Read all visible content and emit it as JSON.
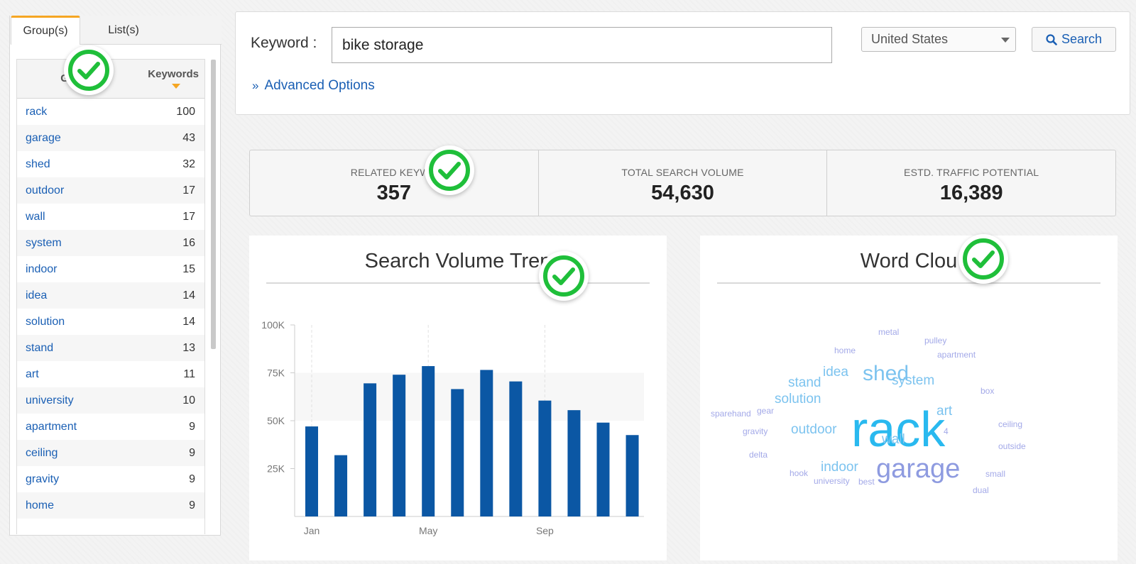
{
  "tabs": {
    "groups": "Group(s)",
    "lists": "List(s)"
  },
  "groups_table": {
    "col_group": "Gr",
    "col_keywords": "Keywords",
    "rows": [
      {
        "name": "rack",
        "count": "100"
      },
      {
        "name": "garage",
        "count": "43"
      },
      {
        "name": "shed",
        "count": "32"
      },
      {
        "name": "outdoor",
        "count": "17"
      },
      {
        "name": "wall",
        "count": "17"
      },
      {
        "name": "system",
        "count": "16"
      },
      {
        "name": "indoor",
        "count": "15"
      },
      {
        "name": "idea",
        "count": "14"
      },
      {
        "name": "solution",
        "count": "14"
      },
      {
        "name": "stand",
        "count": "13"
      },
      {
        "name": "art",
        "count": "11"
      },
      {
        "name": "university",
        "count": "10"
      },
      {
        "name": "apartment",
        "count": "9"
      },
      {
        "name": "ceiling",
        "count": "9"
      },
      {
        "name": "gravity",
        "count": "9"
      },
      {
        "name": "home",
        "count": "9"
      }
    ]
  },
  "search": {
    "label": "Keyword :",
    "value": "bike storage",
    "country": "United States",
    "button": "Search",
    "advanced": "Advanced Options"
  },
  "stats": [
    {
      "label": "RELATED KEYWO",
      "value": "357"
    },
    {
      "label": "TOTAL SEARCH VOLUME",
      "value": "54,630"
    },
    {
      "label": "ESTD. TRAFFIC POTENTIAL",
      "value": "16,389"
    }
  ],
  "trend_card": {
    "title": "Search Volume Tren"
  },
  "cloud_card": {
    "title": "Word Clou"
  },
  "chart_data": {
    "type": "bar",
    "title": "Search Volume Tren",
    "categories": [
      "Jan",
      "Feb",
      "Mar",
      "Apr",
      "May",
      "Jun",
      "Jul",
      "Aug",
      "Sep",
      "Oct",
      "Nov",
      "Dec"
    ],
    "x_tick_labels": [
      "Jan",
      "May",
      "Sep"
    ],
    "values": [
      47000,
      32000,
      69500,
      74000,
      78500,
      66500,
      76500,
      70500,
      60500,
      55500,
      49000,
      42500
    ],
    "y_ticks": [
      "100K",
      "75K",
      "50K",
      "25K"
    ],
    "ylim": [
      0,
      100000
    ],
    "color": "#0b57a4"
  },
  "word_cloud": [
    {
      "text": "rack",
      "color": "#29b9ef",
      "weight": 100
    },
    {
      "text": "garage",
      "color": "#8e9be0",
      "weight": 43
    },
    {
      "text": "shed",
      "color": "#7cc3ef",
      "weight": 32
    },
    {
      "text": "outdoor",
      "color": "#7cc3ef",
      "weight": 17
    },
    {
      "text": "wall",
      "color": "#7cc3ef",
      "weight": 17
    },
    {
      "text": "system",
      "color": "#7cc3ef",
      "weight": 16
    },
    {
      "text": "indoor",
      "color": "#7cc3ef",
      "weight": 15
    },
    {
      "text": "idea",
      "color": "#7cc3ef",
      "weight": 14
    },
    {
      "text": "solution",
      "color": "#7cc3ef",
      "weight": 14
    },
    {
      "text": "stand",
      "color": "#7cc3ef",
      "weight": 13
    },
    {
      "text": "art",
      "color": "#7cc3ef",
      "weight": 11
    },
    {
      "text": "metal",
      "color": "#a3a9e8",
      "weight": 6
    },
    {
      "text": "pulley",
      "color": "#a3a9e8",
      "weight": 6
    },
    {
      "text": "home",
      "color": "#a3a9e8",
      "weight": 6
    },
    {
      "text": "apartment",
      "color": "#a3a9e8",
      "weight": 6
    },
    {
      "text": "box",
      "color": "#a3a9e8",
      "weight": 5
    },
    {
      "text": "sparehand",
      "color": "#a3a9e8",
      "weight": 5
    },
    {
      "text": "gear",
      "color": "#a3a9e8",
      "weight": 5
    },
    {
      "text": "gravity",
      "color": "#a3a9e8",
      "weight": 5
    },
    {
      "text": "ceiling",
      "color": "#a3a9e8",
      "weight": 5
    },
    {
      "text": "4",
      "color": "#a3a9e8",
      "weight": 5
    },
    {
      "text": "outside",
      "color": "#a3a9e8",
      "weight": 5
    },
    {
      "text": "delta",
      "color": "#a3a9e8",
      "weight": 5
    },
    {
      "text": "hook",
      "color": "#a3a9e8",
      "weight": 5
    },
    {
      "text": "university",
      "color": "#a3a9e8",
      "weight": 5
    },
    {
      "text": "best",
      "color": "#a3a9e8",
      "weight": 5
    },
    {
      "text": "small",
      "color": "#a3a9e8",
      "weight": 5
    },
    {
      "text": "dual",
      "color": "#a3a9e8",
      "weight": 5
    }
  ],
  "check_color": "#1fbf3a"
}
